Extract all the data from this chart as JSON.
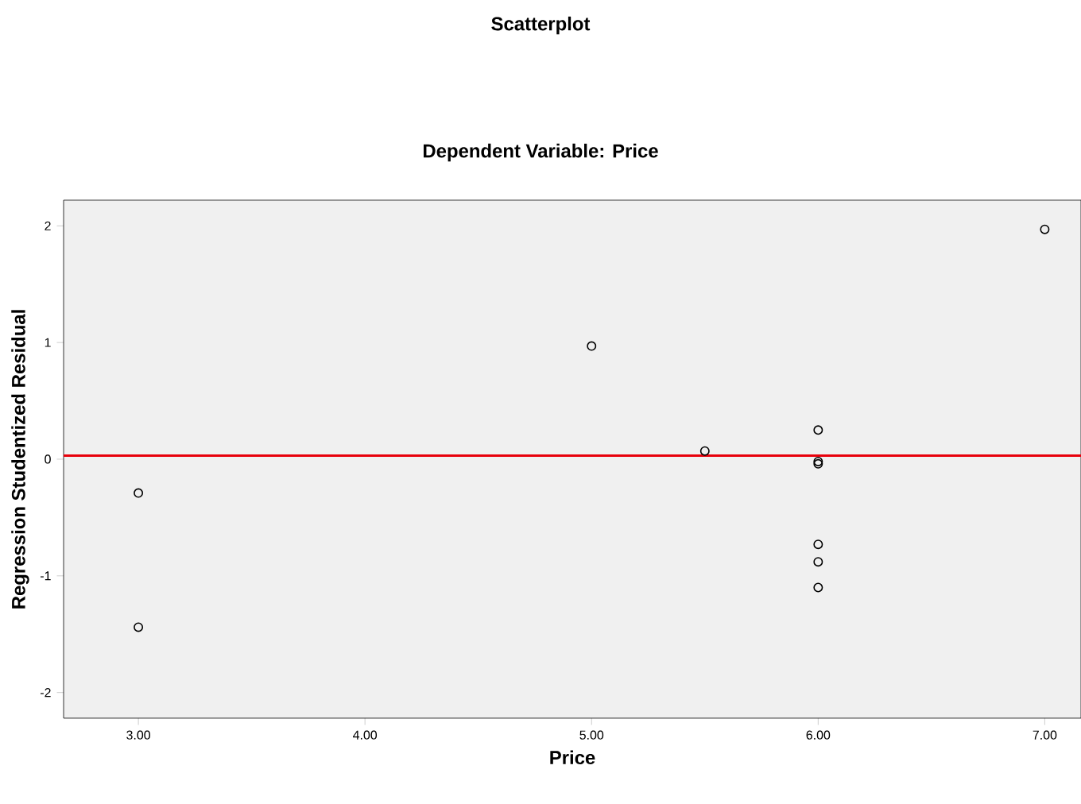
{
  "chart_data": {
    "type": "scatter",
    "title": "Scatterplot",
    "subtitle": "Dependent Variable: Price",
    "xlabel": "Price",
    "ylabel": "Regression Studentized Residual",
    "x": [
      3,
      3,
      5,
      5.5,
      6,
      6,
      6,
      6,
      6,
      6,
      7
    ],
    "series": [
      {
        "color": "#000000",
        "values": [
          -0.29,
          -1.44,
          0.97,
          0.07,
          0.25,
          -0.02,
          -0.04,
          -0.73,
          -0.88,
          -1.1,
          1.97
        ]
      }
    ],
    "xlim": [
      2.67,
      7.16
    ],
    "ylim": [
      -2.22,
      2.22
    ],
    "xticks": [
      {
        "value": 3,
        "label": "3.00"
      },
      {
        "value": 4,
        "label": "4.00"
      },
      {
        "value": 5,
        "label": "5.00"
      },
      {
        "value": 6,
        "label": "6.00"
      },
      {
        "value": 7,
        "label": "7.00"
      }
    ],
    "yticks": [
      -2,
      -1,
      0,
      1,
      2
    ],
    "ref_lines": [
      {
        "axis": "y",
        "value": 0.03,
        "color": "#e8000b"
      }
    ],
    "marker": "circle",
    "grid": false
  }
}
